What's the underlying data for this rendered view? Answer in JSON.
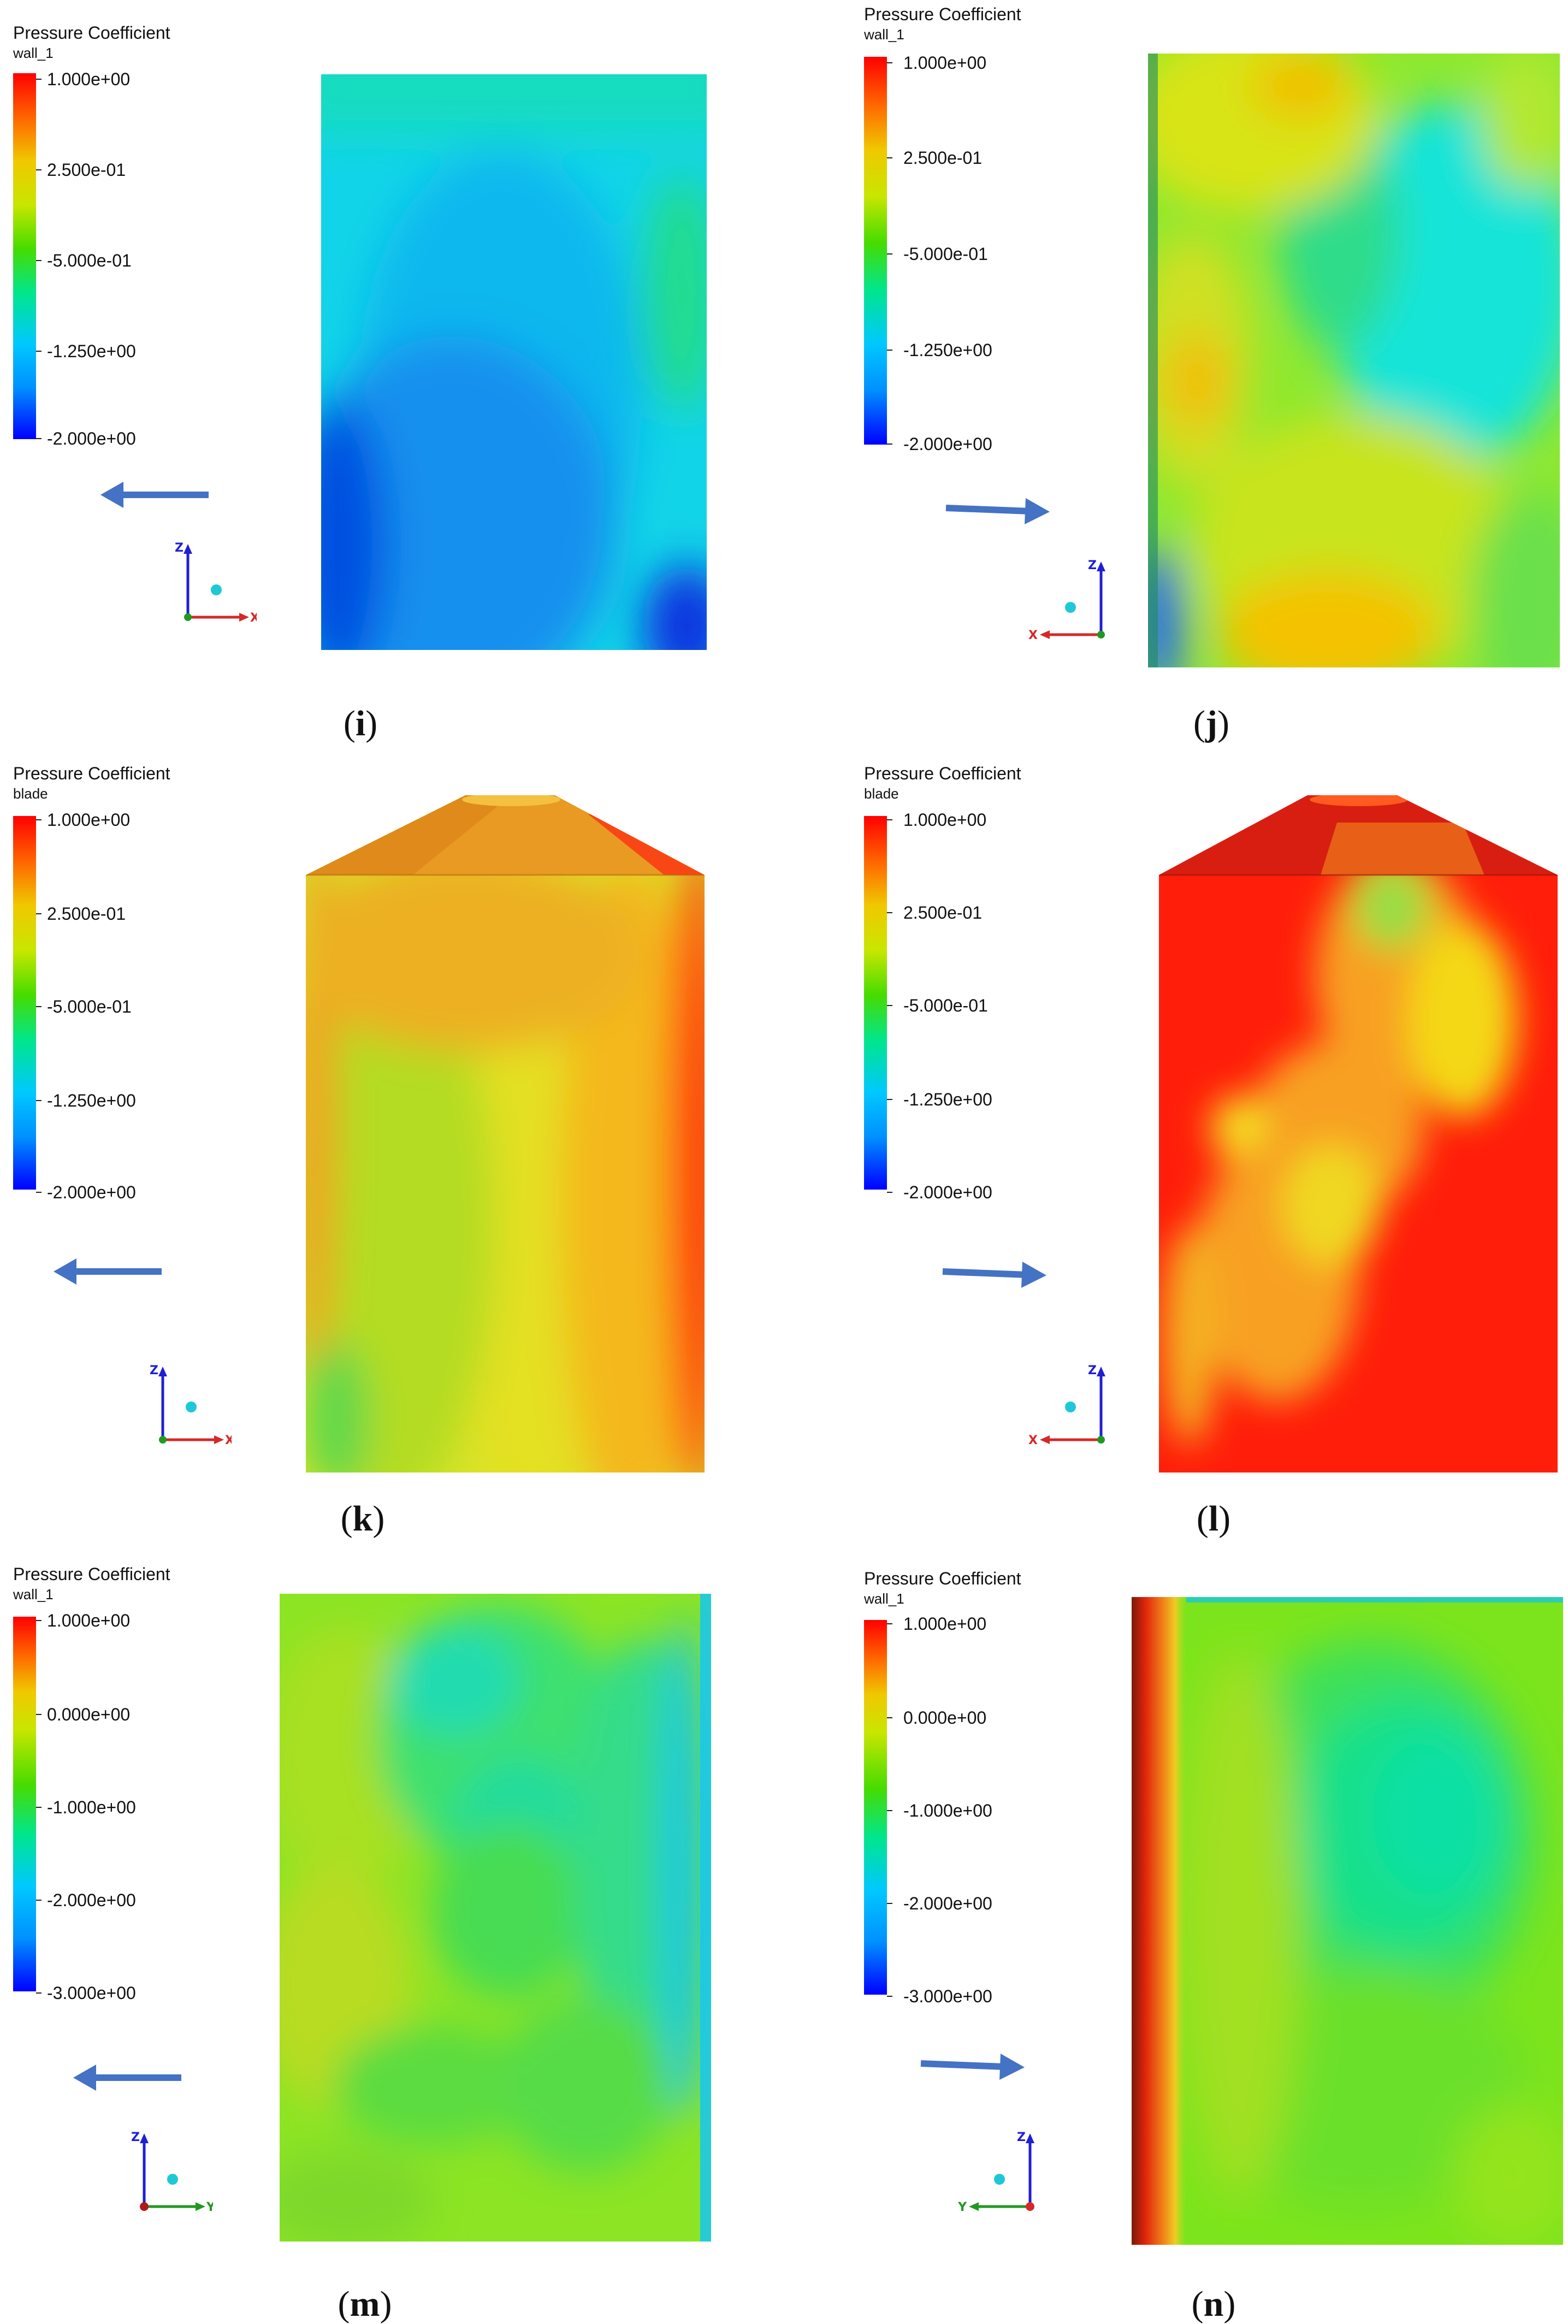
{
  "legend_title": "Pressure Coefficient",
  "colors": {
    "arrow": "#4472c4",
    "axis_z": "#1f1fd6",
    "axis_x": "#d62828",
    "axis_y": "#1f9a1f",
    "scale": [
      "#0000ff",
      "#00c8ff",
      "#00e68c",
      "#46dc00",
      "#c8e600",
      "#f0c800",
      "#ff6400",
      "#ff0000"
    ]
  },
  "panels": [
    {
      "id": "i",
      "caption": "i",
      "surface": "wall_1",
      "ticks": [
        "1.000e+00",
        "2.500e-01",
        "-5.000e-01",
        "-1.250e+00",
        "-2.000e+00"
      ],
      "flow_direction": "left",
      "axes": {
        "vertical": "Z",
        "horizontal": "X",
        "horizontal_direction": "right"
      }
    },
    {
      "id": "j",
      "caption": "j",
      "surface": "wall_1",
      "ticks": [
        "1.000e+00",
        "2.500e-01",
        "-5.000e-01",
        "-1.250e+00",
        "-2.000e+00"
      ],
      "flow_direction": "right",
      "axes": {
        "vertical": "Z",
        "horizontal": "X",
        "horizontal_direction": "left"
      }
    },
    {
      "id": "k",
      "caption": "k",
      "surface": "blade",
      "ticks": [
        "1.000e+00",
        "2.500e-01",
        "-5.000e-01",
        "-1.250e+00",
        "-2.000e+00"
      ],
      "flow_direction": "left",
      "axes": {
        "vertical": "Z",
        "horizontal": "X",
        "horizontal_direction": "right"
      }
    },
    {
      "id": "l",
      "caption": "l",
      "surface": "blade",
      "ticks": [
        "1.000e+00",
        "2.500e-01",
        "-5.000e-01",
        "-1.250e+00",
        "-2.000e+00"
      ],
      "flow_direction": "right",
      "axes": {
        "vertical": "Z",
        "horizontal": "X",
        "horizontal_direction": "left"
      }
    },
    {
      "id": "m",
      "caption": "m",
      "surface": "wall_1",
      "ticks": [
        "1.000e+00",
        "0.000e+00",
        "-1.000e+00",
        "-2.000e+00",
        "-3.000e+00"
      ],
      "flow_direction": "left",
      "axes": {
        "vertical": "Z",
        "horizontal": "Y",
        "horizontal_direction": "right"
      }
    },
    {
      "id": "n",
      "caption": "n",
      "surface": "wall_1",
      "ticks": [
        "1.000e+00",
        "0.000e+00",
        "-1.000e+00",
        "-2.000e+00",
        "-3.000e+00"
      ],
      "flow_direction": "right",
      "axes": {
        "vertical": "Z",
        "horizontal": "Y",
        "horizontal_direction": "left"
      }
    }
  ]
}
